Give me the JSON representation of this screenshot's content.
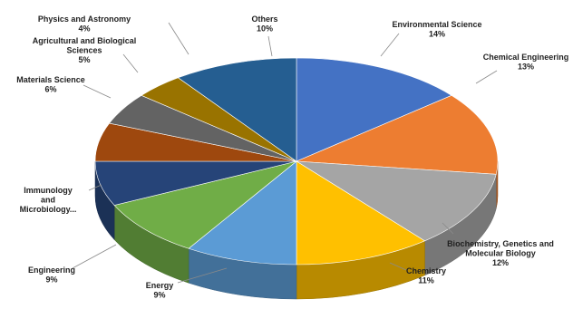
{
  "chart_data": {
    "type": "pie",
    "style": "3d",
    "title": "",
    "legend": "none",
    "unit": "%",
    "slices": [
      {
        "label": "Environmental Science",
        "value": 14,
        "value_label": "14%",
        "color": "#4472C4"
      },
      {
        "label": "Chemical Engineering",
        "value": 13,
        "value_label": "13%",
        "color": "#ED7D31"
      },
      {
        "label": "Biochemistry, Genetics and Molecular Biology",
        "value": 12,
        "value_label": "12%",
        "color": "#A5A5A5"
      },
      {
        "label": "Chemistry",
        "value": 11,
        "value_label": "11%",
        "color": "#FFC000"
      },
      {
        "label": "Energy",
        "value": 9,
        "value_label": "9%",
        "color": "#5B9BD5"
      },
      {
        "label": "Engineering",
        "value": 9,
        "value_label": "9%",
        "color": "#70AD47"
      },
      {
        "label": "Immunology and Microbiology...",
        "value": 7,
        "value_label": "",
        "color": "#264478"
      },
      {
        "label": "Materials Science",
        "value": 6,
        "value_label": "6%",
        "color": "#9E480E"
      },
      {
        "label": "Agricultural and Biological Sciences",
        "value": 5,
        "value_label": "5%",
        "color": "#636363"
      },
      {
        "label": "Physics and Astronomy",
        "value": 4,
        "value_label": "4%",
        "color": "#997300"
      },
      {
        "label": "Others",
        "value": 10,
        "value_label": "10%",
        "color": "#255E91"
      }
    ]
  }
}
